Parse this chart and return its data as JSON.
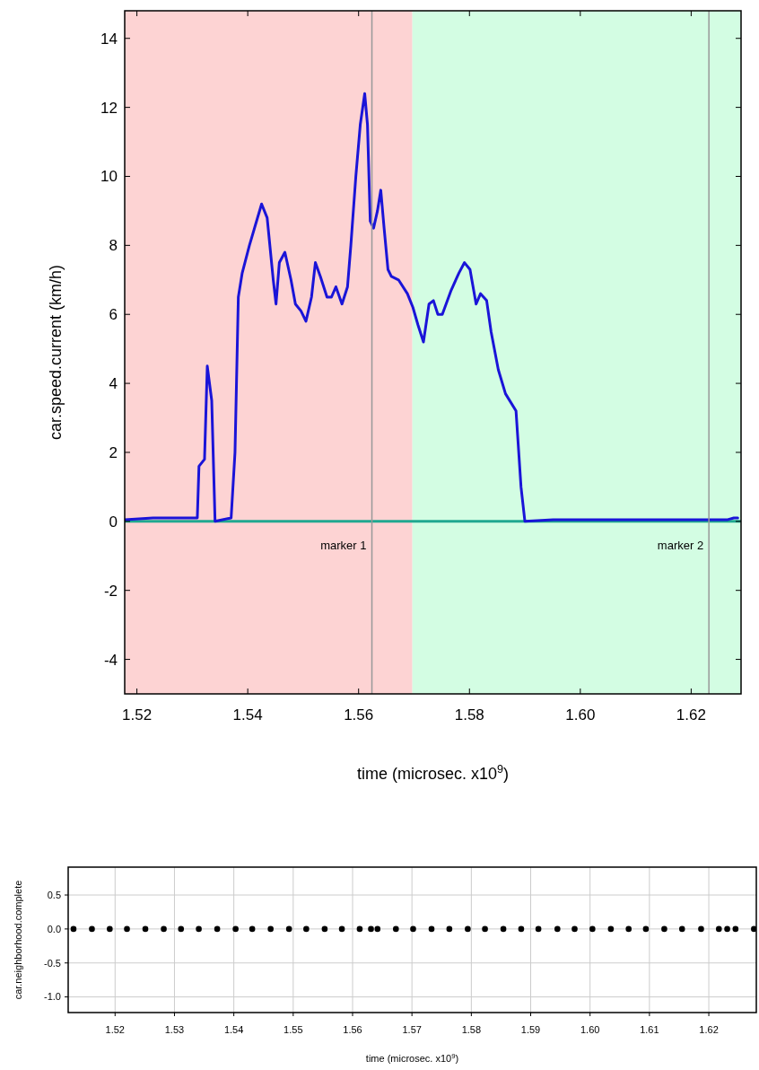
{
  "chart_data": [
    {
      "type": "line",
      "xlabel": "time (microsec. x10$^{9}$)",
      "ylabel": "car.speed.current (km/h)",
      "xlim": [
        1.5178,
        1.629
      ],
      "ylim": [
        -5,
        14.8
      ],
      "xticks": [
        1.52,
        1.54,
        1.56,
        1.58,
        {
          "value": 1.6,
          "label": "1.60"
        },
        1.62
      ],
      "yticks": [
        -4,
        -2,
        0,
        2,
        4,
        6,
        8,
        10,
        12,
        14
      ],
      "bands": [
        {
          "axis": "x",
          "from": 1.5178,
          "to": 1.5697,
          "color": "#fdd3d3"
        },
        {
          "axis": "x",
          "from": 1.5697,
          "to": 1.629,
          "color": "#d3fde3"
        }
      ],
      "ref_lines": [
        {
          "axis": "x",
          "value": 1.5624,
          "label": "marker 1",
          "color": "#999999"
        },
        {
          "axis": "x",
          "value": 1.6232,
          "label": "marker 2",
          "color": "#999999"
        }
      ],
      "series": [
        {
          "color": "#20a890",
          "x": [
            1.5178,
            1.629
          ],
          "values": [
            0,
            0
          ]
        },
        {
          "color": "#1a14d8",
          "x": [
            1.5178,
            1.5229,
            1.5309,
            1.5312,
            1.5322,
            1.5327,
            1.5335,
            1.5341,
            1.537,
            1.5377,
            1.5383,
            1.539,
            1.5403,
            1.5414,
            1.5425,
            1.5435,
            1.5446,
            1.5451,
            1.5457,
            1.5467,
            1.5478,
            1.5486,
            1.5496,
            1.5505,
            1.5515,
            1.5522,
            1.5531,
            1.5543,
            1.5551,
            1.5559,
            1.557,
            1.558,
            1.5586,
            1.5595,
            1.5603,
            1.5611,
            1.5616,
            1.5621,
            1.5627,
            1.5634,
            1.564,
            1.5646,
            1.5653,
            1.5659,
            1.5672,
            1.5688,
            1.5698,
            1.5707,
            1.5717,
            1.5727,
            1.5735,
            1.5743,
            1.5751,
            1.5767,
            1.5781,
            1.5791,
            1.5801,
            1.5812,
            1.582,
            1.5831,
            1.5839,
            1.5852,
            1.5865,
            1.5884,
            1.5893,
            1.59,
            1.5951,
            1.6266,
            1.6277,
            1.6284
          ],
          "values": [
            0.05,
            0.1,
            0.1,
            1.6,
            1.8,
            4.5,
            3.5,
            0,
            0.1,
            2,
            6.5,
            7.2,
            8,
            8.6,
            9.2,
            8.8,
            7,
            6.3,
            7.5,
            7.8,
            7,
            6.3,
            6.1,
            5.8,
            6.5,
            7.5,
            7.1,
            6.5,
            6.5,
            6.8,
            6.3,
            6.8,
            8,
            10,
            11.5,
            12.4,
            11.5,
            8.7,
            8.5,
            9,
            9.6,
            8.5,
            7.3,
            7.1,
            7,
            6.6,
            6.2,
            5.7,
            5.2,
            6.3,
            6.4,
            6,
            6,
            6.7,
            7.2,
            7.5,
            7.3,
            6.3,
            6.6,
            6.4,
            5.5,
            4.4,
            3.7,
            3.2,
            1,
            0,
            0.05,
            0.05,
            0.1,
            0.1
          ]
        }
      ]
    },
    {
      "type": "scatter",
      "xlabel": "time (microsec. x10$^{9}$)",
      "ylabel": "car.neighborhood.complete",
      "xlim": [
        1.5121,
        1.628
      ],
      "ylim": [
        -1.23,
        0.91
      ],
      "xticks": [
        1.52,
        1.53,
        1.54,
        1.55,
        1.56,
        1.57,
        1.58,
        1.59,
        {
          "value": 1.6,
          "label": "1.60"
        },
        1.61,
        1.62
      ],
      "yticks": [
        {
          "value": -1,
          "label": "-1.0"
        },
        -0.5,
        {
          "value": 0,
          "label": "0.0"
        },
        0.5
      ],
      "grid": true,
      "marker": "circle",
      "series": [
        {
          "color": "#000000",
          "x": [
            1.513,
            1.5161,
            1.5191,
            1.522,
            1.5251,
            1.5282,
            1.5311,
            1.5341,
            1.5372,
            1.5403,
            1.5431,
            1.5462,
            1.5493,
            1.5522,
            1.5553,
            1.5582,
            1.5612,
            1.5631,
            1.5642,
            1.5673,
            1.5702,
            1.5733,
            1.5763,
            1.5794,
            1.5823,
            1.5854,
            1.5884,
            1.5913,
            1.5945,
            1.5974,
            1.6004,
            1.6035,
            1.6065,
            1.6094,
            1.6125,
            1.6155,
            1.6187,
            1.6217,
            1.6231,
            1.6245,
            1.6276
          ],
          "values": [
            0,
            0,
            0,
            0,
            0,
            0,
            0,
            0,
            0,
            0,
            0,
            0,
            0,
            0,
            0,
            0,
            0,
            0,
            0,
            0,
            0,
            0,
            0,
            0,
            0,
            0,
            0,
            0,
            0,
            0,
            0,
            0,
            0,
            0,
            0,
            0,
            0,
            0,
            0,
            0,
            0
          ]
        }
      ]
    }
  ]
}
